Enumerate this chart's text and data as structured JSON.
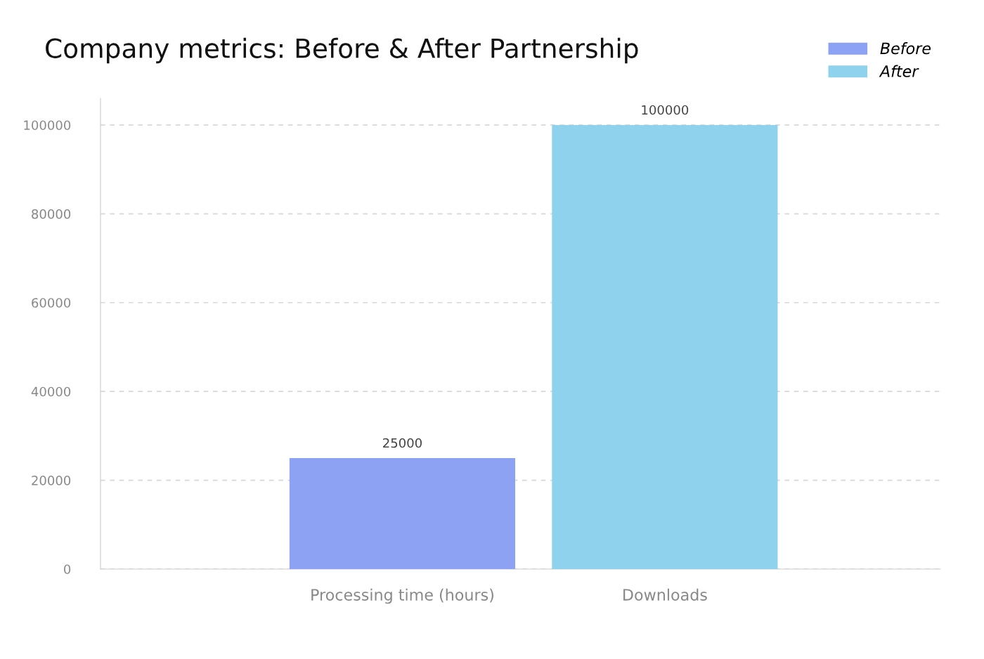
{
  "chart_data": {
    "type": "bar",
    "title": "Company metrics: Before & After Partnership",
    "categories": [
      "Processing time (hours)",
      "Downloads"
    ],
    "series": [
      {
        "name": "Before",
        "color": "#8da2f2",
        "values": [
          25000,
          null
        ]
      },
      {
        "name": "After",
        "color": "#8fd2ee",
        "values": [
          null,
          100000
        ]
      }
    ],
    "ylim": [
      0,
      106000
    ],
    "yticks": [
      0,
      20000,
      40000,
      60000,
      80000,
      100000
    ],
    "grid": "y",
    "legend": "top right",
    "data_labels": true
  }
}
